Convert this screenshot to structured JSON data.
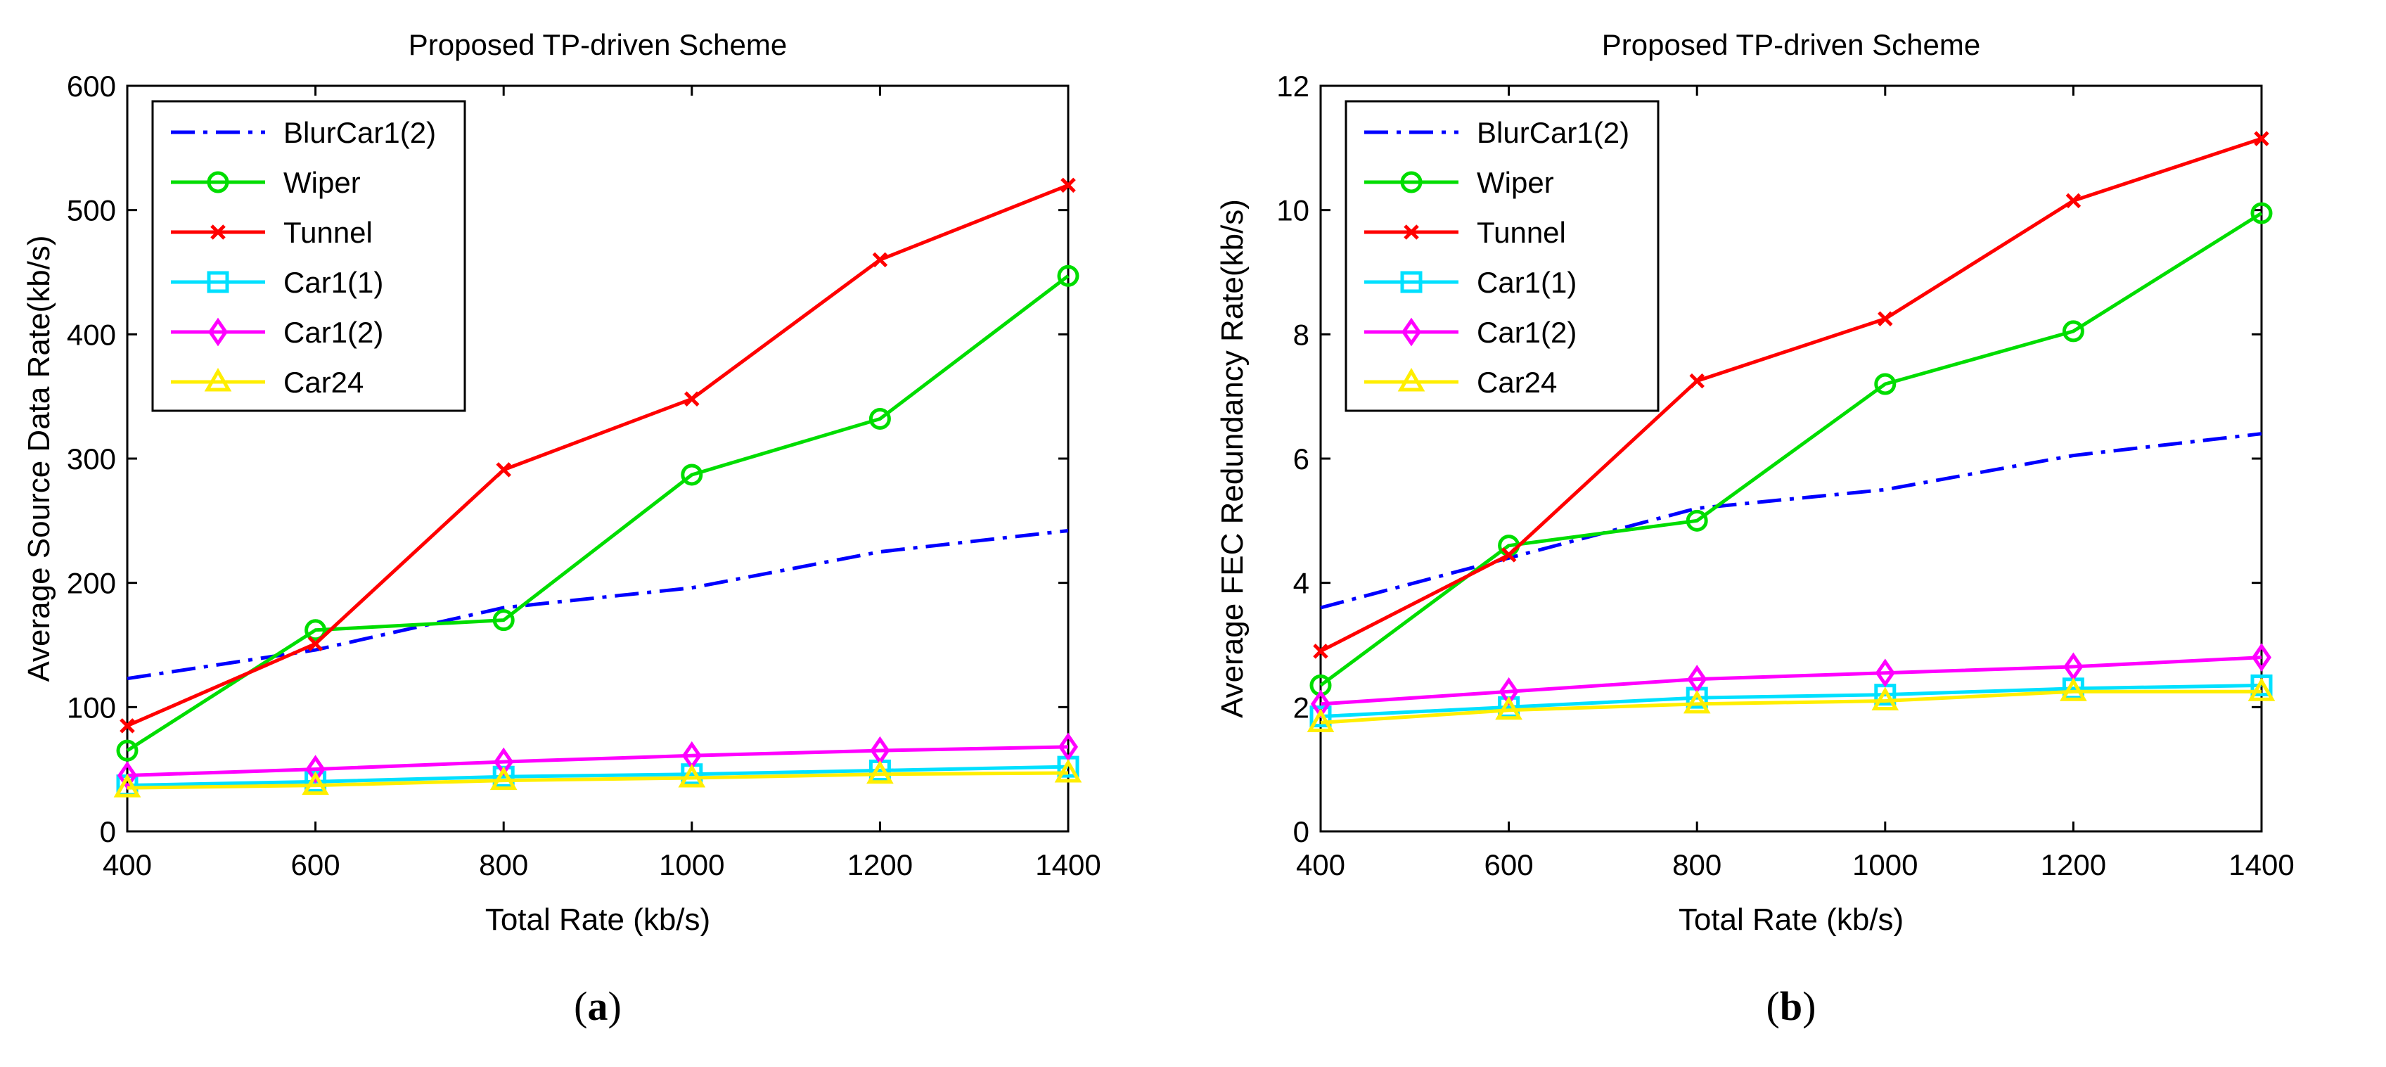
{
  "chart_data": [
    {
      "type": "line",
      "title": "Proposed TP-driven Scheme",
      "xlabel": "Total Rate (kb/s)",
      "ylabel": "Average Source Data Rate(kb/s)",
      "caption_label": "a",
      "x": [
        400,
        600,
        800,
        1000,
        1200,
        1400
      ],
      "xticks": [
        "400",
        "600",
        "800",
        "1000",
        "1200",
        "1400"
      ],
      "yticks": [
        "0",
        "100",
        "200",
        "300",
        "400",
        "500",
        "600"
      ],
      "xlim": [
        400,
        1400
      ],
      "ylim": [
        0,
        600
      ],
      "legend_position": "top-left",
      "grid": false,
      "series": [
        {
          "name": "BlurCar1(2)",
          "color": "#0000ff",
          "style": "dashdot",
          "marker": "none",
          "values": [
            123,
            146,
            180,
            196,
            225,
            242
          ]
        },
        {
          "name": "Wiper",
          "color": "#00dd00",
          "style": "solid",
          "marker": "circle",
          "values": [
            65,
            162,
            170,
            287,
            332,
            447
          ]
        },
        {
          "name": "Tunnel",
          "color": "#ff0000",
          "style": "solid",
          "marker": "x",
          "values": [
            85,
            151,
            291,
            348,
            460,
            520
          ]
        },
        {
          "name": "Car1(1)",
          "color": "#00e0ff",
          "style": "solid",
          "marker": "square",
          "values": [
            37,
            40,
            44,
            46,
            49,
            52
          ]
        },
        {
          "name": "Car1(2)",
          "color": "#ff00ff",
          "style": "solid",
          "marker": "diamond",
          "values": [
            45,
            50,
            56,
            61,
            65,
            68
          ]
        },
        {
          "name": "Car24",
          "color": "#ffee00",
          "style": "solid",
          "marker": "triangle",
          "values": [
            35,
            37,
            41,
            43,
            46,
            47
          ]
        }
      ]
    },
    {
      "type": "line",
      "title": "Proposed TP-driven Scheme",
      "xlabel": "Total Rate (kb/s)",
      "ylabel": "Average FEC Redundancy Rate(kb/s)",
      "caption_label": "b",
      "x": [
        400,
        600,
        800,
        1000,
        1200,
        1400
      ],
      "xticks": [
        "400",
        "600",
        "800",
        "1000",
        "1200",
        "1400"
      ],
      "yticks": [
        "0",
        "2",
        "4",
        "6",
        "8",
        "10",
        "12"
      ],
      "xlim": [
        400,
        1400
      ],
      "ylim": [
        0,
        12
      ],
      "legend_position": "top-left",
      "grid": false,
      "series": [
        {
          "name": "BlurCar1(2)",
          "color": "#0000ff",
          "style": "dashdot",
          "marker": "none",
          "values": [
            3.6,
            4.4,
            5.2,
            5.5,
            6.05,
            6.4
          ]
        },
        {
          "name": "Wiper",
          "color": "#00dd00",
          "style": "solid",
          "marker": "circle",
          "values": [
            2.35,
            4.6,
            5.0,
            7.2,
            8.05,
            9.95
          ]
        },
        {
          "name": "Tunnel",
          "color": "#ff0000",
          "style": "solid",
          "marker": "x",
          "values": [
            2.9,
            4.45,
            7.25,
            8.25,
            10.15,
            11.15
          ]
        },
        {
          "name": "Car1(1)",
          "color": "#00e0ff",
          "style": "solid",
          "marker": "square",
          "values": [
            1.85,
            2.0,
            2.15,
            2.2,
            2.3,
            2.35
          ]
        },
        {
          "name": "Car1(2)",
          "color": "#ff00ff",
          "style": "solid",
          "marker": "diamond",
          "values": [
            2.05,
            2.25,
            2.45,
            2.55,
            2.65,
            2.8
          ]
        },
        {
          "name": "Car24",
          "color": "#ffee00",
          "style": "solid",
          "marker": "triangle",
          "values": [
            1.75,
            1.95,
            2.05,
            2.1,
            2.25,
            2.25
          ]
        }
      ]
    }
  ]
}
